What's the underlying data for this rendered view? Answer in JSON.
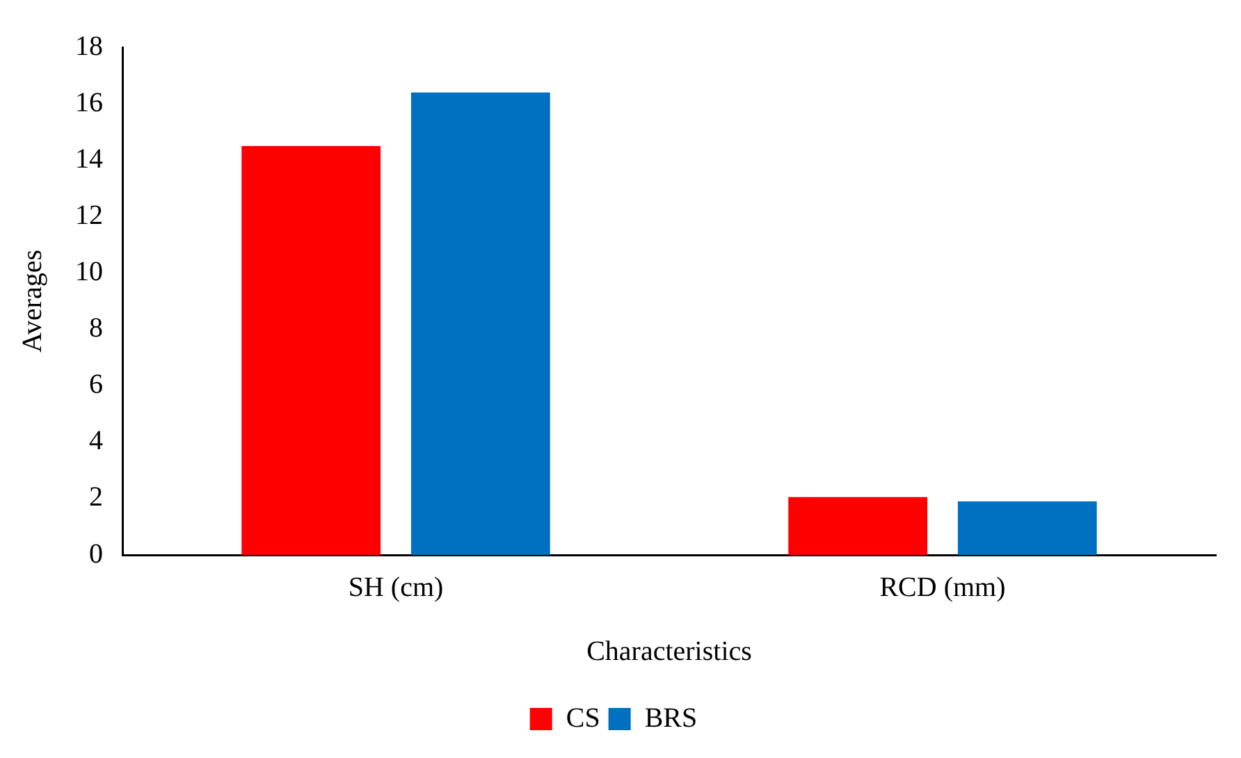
{
  "chart_data": {
    "type": "bar",
    "xlabel": "Characteristics",
    "ylabel": "Averages",
    "categories": [
      "SH (cm)",
      "RCD (mm)"
    ],
    "series": [
      {
        "name": "CS",
        "color": "#ff0000",
        "values": [
          14.5,
          2.05
        ]
      },
      {
        "name": "BRS",
        "color": "#0070c0",
        "values": [
          16.4,
          1.9
        ]
      }
    ],
    "ylim": [
      0,
      18
    ],
    "yticks": [
      0,
      2,
      4,
      6,
      8,
      10,
      12,
      14,
      16,
      18
    ],
    "grid": false,
    "legend": "bottom"
  }
}
